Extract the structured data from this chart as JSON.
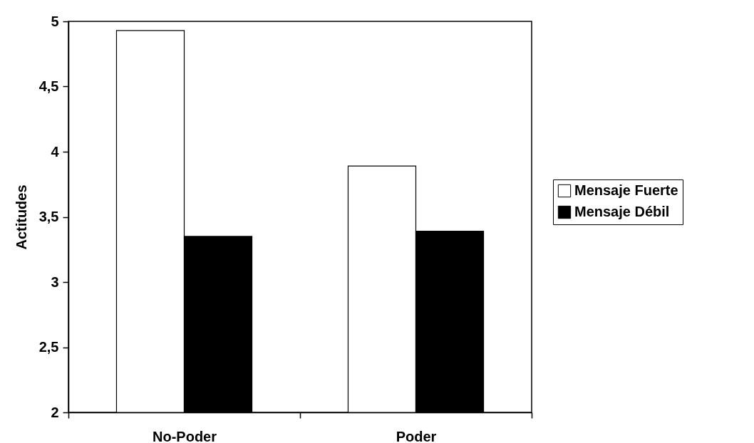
{
  "chart_data": {
    "type": "bar",
    "ylabel": "Actitudes",
    "categories": [
      "No-Poder",
      "Poder"
    ],
    "series": [
      {
        "name": "Mensaje Fuerte",
        "color": "#ffffff",
        "values": [
          4.93,
          3.89
        ]
      },
      {
        "name": "Mensaje Débil",
        "color": "#000000",
        "values": [
          3.35,
          3.39
        ]
      }
    ],
    "ylim": [
      2,
      5
    ],
    "yticks": [
      2,
      {
        "value": 2.5,
        "label": "2,5"
      },
      3,
      {
        "value": 3.5,
        "label": "3,5"
      },
      4,
      {
        "value": 4.5,
        "label": "4,5"
      },
      5
    ],
    "grid": false,
    "legend": "right"
  }
}
